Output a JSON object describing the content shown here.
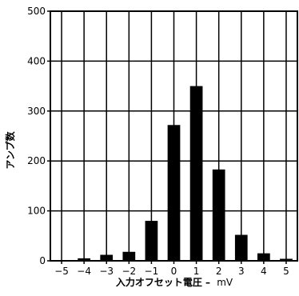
{
  "chart_data": {
    "type": "bar",
    "title": "",
    "xlabel": "入力オフセット電圧 – mV",
    "xlabel_main": "入力オフセット電圧 –",
    "xlabel_unit": "mV",
    "ylabel": "アンプ数",
    "x_categories": [
      "−5",
      "−4",
      "−3",
      "−2",
      "−1",
      "0",
      "1",
      "2",
      "3",
      "4",
      "5"
    ],
    "x": [
      -5,
      -4,
      -3,
      -2,
      -1,
      0,
      1,
      2,
      3,
      4,
      5
    ],
    "values": [
      0,
      5,
      12,
      18,
      80,
      272,
      350,
      183,
      52,
      15,
      4
    ],
    "ylim": [
      0,
      500
    ],
    "yticks": [
      0,
      100,
      200,
      300,
      400,
      500
    ],
    "xlim": [
      -5.5,
      5.5
    ],
    "grid": true,
    "bar_color": "#000000",
    "grid_color": "#000000"
  }
}
